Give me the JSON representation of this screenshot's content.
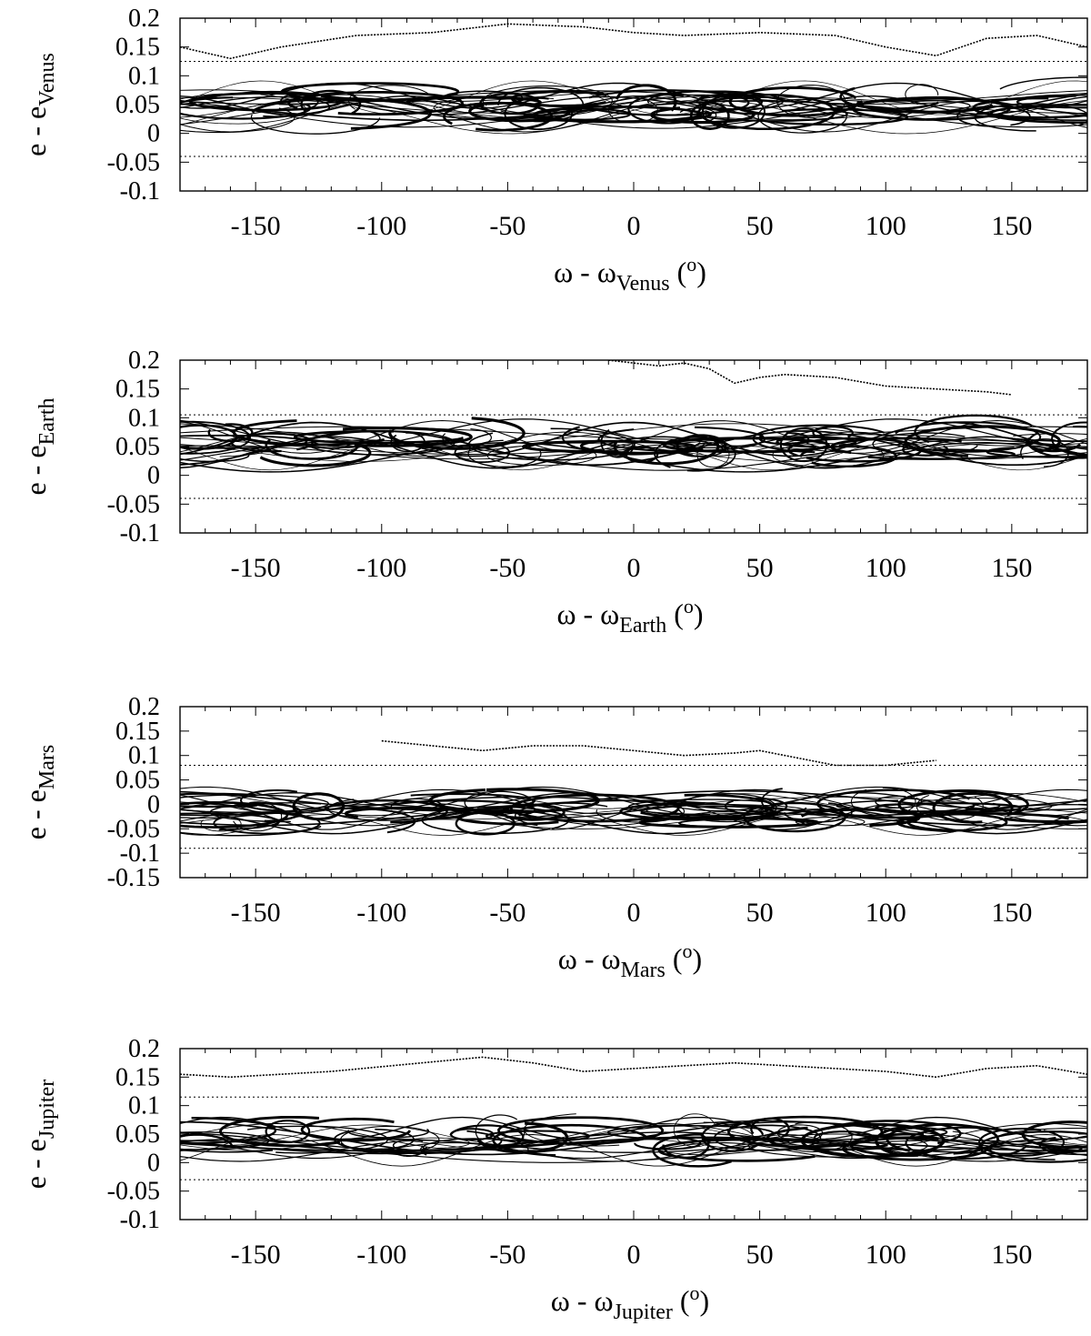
{
  "chart_data": [
    {
      "type": "scatter",
      "xlabel": {
        "main": "ω - ω",
        "sub": "Venus",
        "unit": " (",
        "sup": "o",
        "close": ")"
      },
      "ylabel": {
        "main": "e - e",
        "sub": "Venus"
      },
      "xlim": [
        -180,
        180
      ],
      "ylim": [
        -0.1,
        0.2
      ],
      "xticks": [
        -150,
        -100,
        -50,
        0,
        50,
        100,
        150
      ],
      "yticks": [
        -0.1,
        -0.05,
        0,
        0.05,
        0.1,
        0.15,
        0.2
      ],
      "ytick_labels": [
        "-0.1",
        "-0.05",
        "0",
        "0.05",
        "0.1",
        "0.15",
        "0.2"
      ],
      "band": {
        "center": 0.05,
        "spread": 0.045,
        "low": -0.04,
        "high": 0.125
      },
      "upper_boundary": {
        "x": [
          -180,
          -160,
          -140,
          -110,
          -80,
          -50,
          -20,
          0,
          20,
          50,
          80,
          100,
          120,
          140,
          160,
          180
        ],
        "y": [
          0.15,
          0.13,
          0.15,
          0.17,
          0.175,
          0.19,
          0.185,
          0.175,
          0.17,
          0.175,
          0.17,
          0.15,
          0.135,
          0.165,
          0.17,
          0.15
        ]
      }
    },
    {
      "type": "scatter",
      "xlabel": {
        "main": "ω - ω",
        "sub": "Earth",
        "unit": " (",
        "sup": "o",
        "close": ")"
      },
      "ylabel": {
        "main": "e - e",
        "sub": "Earth"
      },
      "xlim": [
        -180,
        180
      ],
      "ylim": [
        -0.1,
        0.2
      ],
      "xticks": [
        -150,
        -100,
        -50,
        0,
        50,
        100,
        150
      ],
      "yticks": [
        -0.1,
        -0.05,
        0,
        0.05,
        0.1,
        0.15,
        0.2
      ],
      "ytick_labels": [
        "-0.1",
        "-0.05",
        "0",
        "0.05",
        "0.1",
        "0.15",
        "0.2"
      ],
      "band": {
        "center": 0.055,
        "spread": 0.045,
        "low": -0.04,
        "high": 0.105
      },
      "upper_boundary": {
        "x": [
          -10,
          10,
          20,
          30,
          40,
          50,
          60,
          80,
          100,
          120,
          140,
          150
        ],
        "y": [
          0.2,
          0.19,
          0.195,
          0.185,
          0.16,
          0.17,
          0.175,
          0.17,
          0.155,
          0.15,
          0.145,
          0.14
        ]
      }
    },
    {
      "type": "scatter",
      "xlabel": {
        "main": "ω - ω",
        "sub": "Mars",
        "unit": " (",
        "sup": "o",
        "close": ")"
      },
      "ylabel": {
        "main": "e - e",
        "sub": "Mars"
      },
      "xlim": [
        -180,
        180
      ],
      "ylim": [
        -0.15,
        0.2
      ],
      "xticks": [
        -150,
        -100,
        -50,
        0,
        50,
        100,
        150
      ],
      "yticks": [
        -0.15,
        -0.1,
        -0.05,
        0,
        0.05,
        0.1,
        0.15,
        0.2
      ],
      "ytick_labels": [
        "-0.15",
        "-0.1",
        "-0.05",
        "0",
        "0.05",
        "0.1",
        "0.15",
        "0.2"
      ],
      "band": {
        "center": -0.015,
        "spread": 0.05,
        "low": -0.09,
        "high": 0.08
      },
      "upper_boundary": {
        "x": [
          -100,
          -80,
          -60,
          -40,
          -20,
          0,
          20,
          40,
          50,
          60,
          80,
          100,
          120
        ],
        "y": [
          0.13,
          0.12,
          0.11,
          0.12,
          0.12,
          0.11,
          0.1,
          0.105,
          0.11,
          0.1,
          0.08,
          0.08,
          0.09
        ]
      }
    },
    {
      "type": "scatter",
      "xlabel": {
        "main": "ω - ω",
        "sub": "Jupiter",
        "unit": " (",
        "sup": "o",
        "close": ")"
      },
      "ylabel": {
        "main": "e - e",
        "sub": "Jupiter"
      },
      "xlim": [
        -180,
        180
      ],
      "ylim": [
        -0.1,
        0.2
      ],
      "xticks": [
        -150,
        -100,
        -50,
        0,
        50,
        100,
        150
      ],
      "yticks": [
        -0.1,
        -0.05,
        0,
        0.05,
        0.1,
        0.15,
        0.2
      ],
      "ytick_labels": [
        "-0.1",
        "-0.05",
        "0",
        "0.05",
        "0.1",
        "0.15",
        "0.2"
      ],
      "band": {
        "center": 0.04,
        "spread": 0.04,
        "low": -0.03,
        "high": 0.115
      },
      "upper_boundary": {
        "x": [
          -180,
          -160,
          -120,
          -60,
          -40,
          -20,
          0,
          20,
          40,
          60,
          80,
          100,
          120,
          140,
          160,
          180
        ],
        "y": [
          0.155,
          0.15,
          0.16,
          0.185,
          0.175,
          0.16,
          0.165,
          0.17,
          0.175,
          0.17,
          0.165,
          0.16,
          0.15,
          0.165,
          0.17,
          0.155
        ]
      }
    }
  ]
}
